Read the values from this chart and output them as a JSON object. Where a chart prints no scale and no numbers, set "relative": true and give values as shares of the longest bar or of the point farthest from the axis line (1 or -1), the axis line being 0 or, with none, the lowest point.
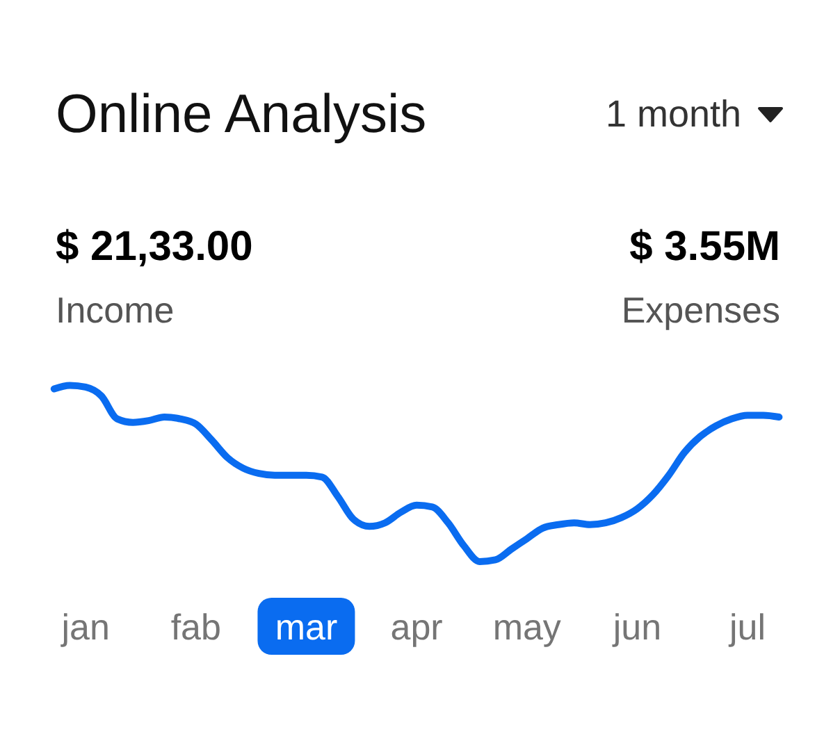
{
  "chart_data": {
    "type": "line",
    "title": "Online Analysis",
    "annotations": [
      "1 month",
      "$ 21,33.00",
      "Income",
      "$ 3.55M",
      "Expenses"
    ],
    "relative": true,
    "categories": [
      null,
      null,
      "jan",
      null,
      null,
      null,
      null,
      null,
      null,
      "fab",
      null,
      null,
      null,
      null,
      null,
      null,
      "mar",
      null,
      null,
      null,
      null,
      null,
      null,
      "apr",
      null,
      null,
      null,
      null,
      null,
      null,
      "may",
      null,
      null,
      null,
      null,
      null,
      null,
      "jun",
      null,
      null,
      null,
      null,
      null,
      null,
      "jul",
      null,
      null
    ],
    "tick_labels": "x",
    "line_style": "solid",
    "series": [
      {
        "color": "#0a6cf0",
        "values": [
          0.98,
          1.0,
          0.99,
          0.94,
          0.81,
          0.79,
          0.8,
          0.82,
          0.81,
          0.78,
          0.69,
          0.59,
          0.53,
          0.5,
          0.49,
          0.49,
          0.49,
          0.48,
          0.37,
          0.24,
          0.2,
          0.22,
          0.28,
          0.32,
          0.31,
          0.22,
          0.09,
          0.0,
          0.01,
          0.07,
          0.13,
          0.19,
          0.21,
          0.22,
          0.21,
          0.22,
          0.25,
          0.3,
          0.38,
          0.49,
          0.62,
          0.71,
          0.77,
          0.81,
          0.83,
          0.83,
          0.82
        ]
      }
    ]
  }
}
